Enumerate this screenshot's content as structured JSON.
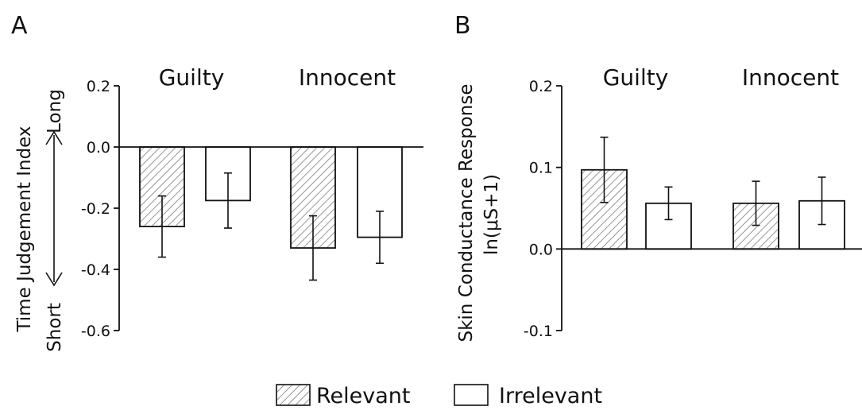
{
  "legend": {
    "relevant_label": "Relevant",
    "irrelevant_label": "Irrelevant"
  },
  "chart_data": [
    {
      "type": "bar",
      "panel": "A",
      "ylabel": "Time Judgement Index",
      "y_direction_labels": {
        "top": "Long",
        "bottom": "Short"
      },
      "groups": [
        "Guilty",
        "Innocent"
      ],
      "series": [
        {
          "name": "Relevant",
          "pattern": "hatched",
          "values": [
            -0.26,
            -0.33
          ],
          "errors": [
            0.1,
            0.105
          ]
        },
        {
          "name": "Irrelevant",
          "pattern": "open",
          "values": [
            -0.175,
            -0.295
          ],
          "errors": [
            0.09,
            0.085
          ]
        }
      ],
      "ylim": [
        -0.6,
        0.2
      ],
      "yticks": [
        0.2,
        0.0,
        -0.2,
        -0.4,
        -0.6
      ],
      "ytick_labels": [
        "0.2",
        "0.0",
        "-0.2",
        "-0.4",
        "-0.6"
      ],
      "grid": false
    },
    {
      "type": "bar",
      "panel": "B",
      "ylabel": "Skin Conductance Response",
      "ylabel2": "ln(μS+1)",
      "groups": [
        "Guilty",
        "Innocent"
      ],
      "series": [
        {
          "name": "Relevant",
          "pattern": "hatched",
          "values": [
            0.097,
            0.056
          ],
          "errors": [
            0.04,
            0.027
          ]
        },
        {
          "name": "Irrelevant",
          "pattern": "open",
          "values": [
            0.056,
            0.059
          ],
          "errors": [
            0.02,
            0.029
          ]
        }
      ],
      "ylim": [
        -0.1,
        0.2
      ],
      "yticks": [
        0.2,
        0.1,
        0.0,
        -0.1
      ],
      "ytick_labels": [
        "0.2",
        "0.1",
        "0.0",
        "-0.1"
      ],
      "grid": false
    }
  ]
}
